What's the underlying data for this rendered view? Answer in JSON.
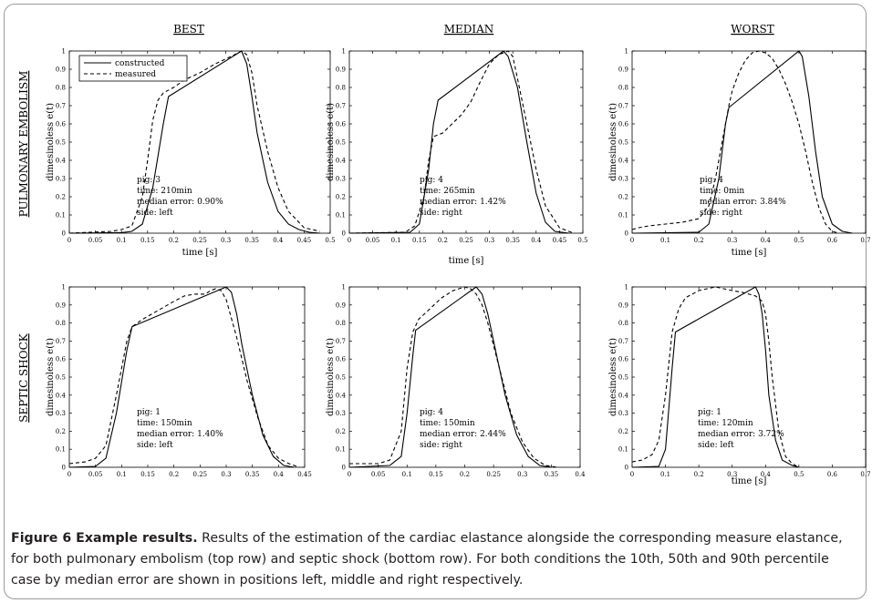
{
  "columns": [
    "BEST",
    "MEDIAN",
    "WORST"
  ],
  "rows": [
    "PULMONARY EMBOLISM",
    "SEPTIC SHOCK"
  ],
  "legend": {
    "constructed": "constructed",
    "measured": "measured"
  },
  "caption": {
    "label": "Figure 6 Example results.",
    "text": "Results of the estimation of the cardiac elastance alongside the corresponding measure elastance, for both pulmonary embolism (top row) and septic shock (bottom row). For both conditions the 10th, 50th and 90th percentile case by median error are shown in positions left, middle and right respectively."
  },
  "chart_data": [
    {
      "type": "line",
      "row": "PULMONARY EMBOLISM",
      "column": "BEST",
      "xlabel": "time [s]",
      "ylabel": "dimesinoless e(t)",
      "xlim": [
        0,
        0.5
      ],
      "ylim": [
        0,
        1
      ],
      "xticks": [
        "0",
        "0.05",
        "0.1",
        "0.15",
        "0.2",
        "0.25",
        "0.3",
        "0.35",
        "0.4",
        "0.45",
        "0.5"
      ],
      "yticks": [
        "0",
        "0.1",
        "0.2",
        "0.3",
        "0.4",
        "0.5",
        "0.6",
        "0.7",
        "0.8",
        "0.9",
        "1"
      ],
      "annotation": [
        "pig: 3",
        "time: 210min",
        "median error: 0.90%",
        "side: left"
      ],
      "series": [
        {
          "name": "constructed",
          "style": "solid",
          "x": [
            0,
            0.1,
            0.12,
            0.14,
            0.16,
            0.18,
            0.19,
            0.33,
            0.34,
            0.35,
            0.36,
            0.38,
            0.4,
            0.42,
            0.44,
            0.46,
            0.48
          ],
          "y": [
            0,
            0.003,
            0.01,
            0.05,
            0.25,
            0.6,
            0.75,
            1,
            0.93,
            0.75,
            0.55,
            0.28,
            0.12,
            0.05,
            0.02,
            0.005,
            0
          ]
        },
        {
          "name": "measured",
          "style": "dashed",
          "x": [
            0,
            0.08,
            0.1,
            0.12,
            0.14,
            0.15,
            0.16,
            0.17,
            0.18,
            0.2,
            0.22,
            0.25,
            0.28,
            0.31,
            0.33,
            0.34,
            0.35,
            0.36,
            0.38,
            0.4,
            0.42,
            0.45,
            0.48
          ],
          "y": [
            0,
            0.01,
            0.02,
            0.04,
            0.2,
            0.4,
            0.62,
            0.73,
            0.77,
            0.8,
            0.84,
            0.88,
            0.93,
            0.97,
            1,
            0.98,
            0.88,
            0.7,
            0.45,
            0.25,
            0.12,
            0.03,
            0.01
          ]
        }
      ]
    },
    {
      "type": "line",
      "row": "PULMONARY EMBOLISM",
      "column": "MEDIAN",
      "xlabel": "time [s]",
      "ylabel": "dimesinoless e(t)",
      "xlim": [
        0,
        0.5
      ],
      "ylim": [
        0,
        1
      ],
      "xticks": [
        "0",
        "0.05",
        "0.1",
        "0.15",
        "0.2",
        "0.25",
        "0.3",
        "0.35",
        "0.4",
        "0.45",
        "0.5"
      ],
      "yticks": [
        "0",
        "0.1",
        "0.2",
        "0.3",
        "0.4",
        "0.5",
        "0.6",
        "0.7",
        "0.8",
        "0.9",
        "1"
      ],
      "annotation": [
        "pig: 4",
        "time: 265min",
        "median error: 1.42%",
        "side: right"
      ],
      "series": [
        {
          "name": "constructed",
          "style": "solid",
          "x": [
            0,
            0.13,
            0.15,
            0.17,
            0.18,
            0.19,
            0.33,
            0.34,
            0.36,
            0.38,
            0.4,
            0.42,
            0.44,
            0.47
          ],
          "y": [
            0,
            0.005,
            0.05,
            0.35,
            0.6,
            0.73,
            1,
            0.97,
            0.8,
            0.5,
            0.22,
            0.06,
            0.01,
            0
          ]
        },
        {
          "name": "measured",
          "style": "dashed",
          "x": [
            0,
            0.12,
            0.14,
            0.16,
            0.17,
            0.18,
            0.2,
            0.22,
            0.24,
            0.26,
            0.28,
            0.3,
            0.32,
            0.34,
            0.35,
            0.36,
            0.38,
            0.4,
            0.42,
            0.45,
            0.48
          ],
          "y": [
            0,
            0.005,
            0.04,
            0.2,
            0.4,
            0.53,
            0.55,
            0.6,
            0.65,
            0.72,
            0.83,
            0.93,
            0.98,
            1,
            0.97,
            0.85,
            0.6,
            0.35,
            0.15,
            0.03,
            0
          ]
        }
      ]
    },
    {
      "type": "line",
      "row": "PULMONARY EMBOLISM",
      "column": "WORST",
      "xlabel": "time [s]",
      "ylabel": "dimesinoless e(t)",
      "xlim": [
        0,
        0.7
      ],
      "ylim": [
        0,
        1
      ],
      "xticks": [
        "0",
        "0.1",
        "0.2",
        "0.3",
        "0.4",
        "0.5",
        "0.6",
        "0.7"
      ],
      "yticks": [
        "0",
        "0.1",
        "0.2",
        "0.3",
        "0.4",
        "0.5",
        "0.6",
        "0.7",
        "0.8",
        "0.9",
        "1"
      ],
      "annotation": [
        "pig: 4",
        "time: 0min",
        "median error: 3.84%",
        "side: right"
      ],
      "series": [
        {
          "name": "constructed",
          "style": "solid",
          "x": [
            0,
            0.2,
            0.23,
            0.26,
            0.28,
            0.29,
            0.5,
            0.51,
            0.53,
            0.55,
            0.57,
            0.6,
            0.63,
            0.66
          ],
          "y": [
            0,
            0.005,
            0.05,
            0.3,
            0.6,
            0.69,
            1,
            0.97,
            0.75,
            0.45,
            0.2,
            0.05,
            0.01,
            0
          ]
        },
        {
          "name": "measured",
          "style": "dashed",
          "x": [
            0,
            0.02,
            0.05,
            0.1,
            0.15,
            0.2,
            0.23,
            0.25,
            0.27,
            0.29,
            0.3,
            0.32,
            0.34,
            0.36,
            0.38,
            0.4,
            0.42,
            0.44,
            0.46,
            0.48,
            0.5,
            0.52,
            0.54,
            0.56,
            0.58,
            0.6,
            0.62
          ],
          "y": [
            0.02,
            0.03,
            0.04,
            0.05,
            0.06,
            0.08,
            0.15,
            0.3,
            0.5,
            0.7,
            0.78,
            0.88,
            0.95,
            0.99,
            1,
            0.99,
            0.96,
            0.9,
            0.82,
            0.72,
            0.6,
            0.45,
            0.28,
            0.14,
            0.05,
            0.01,
            0
          ]
        }
      ]
    },
    {
      "type": "line",
      "row": "SEPTIC SHOCK",
      "column": "BEST",
      "xlabel": "",
      "ylabel": "dimesinoless e(t)",
      "xlim": [
        0,
        0.45
      ],
      "ylim": [
        0,
        1
      ],
      "xticks": [
        "0",
        "0.05",
        "0.1",
        "0.15",
        "0.2",
        "0.25",
        "0.3",
        "0.35",
        "0.4",
        "0.45"
      ],
      "yticks": [
        "0",
        "0.1",
        "0.2",
        "0.3",
        "0.4",
        "0.5",
        "0.6",
        "0.7",
        "0.8",
        "0.9",
        "1"
      ],
      "annotation": [
        "pig: 1",
        "time: 150min",
        "median error: 1.40%",
        "side: left"
      ],
      "series": [
        {
          "name": "constructed",
          "style": "solid",
          "x": [
            0,
            0.05,
            0.07,
            0.09,
            0.11,
            0.12,
            0.3,
            0.31,
            0.32,
            0.33,
            0.35,
            0.37,
            0.39,
            0.41,
            0.43
          ],
          "y": [
            0,
            0.005,
            0.05,
            0.3,
            0.65,
            0.78,
            1,
            0.97,
            0.85,
            0.68,
            0.4,
            0.18,
            0.06,
            0.01,
            0
          ]
        },
        {
          "name": "measured",
          "style": "dashed",
          "x": [
            0,
            0.03,
            0.05,
            0.07,
            0.09,
            0.11,
            0.12,
            0.14,
            0.17,
            0.2,
            0.22,
            0.24,
            0.26,
            0.27,
            0.28,
            0.29,
            0.3,
            0.32,
            0.34,
            0.36,
            0.38,
            0.4,
            0.42,
            0.44
          ],
          "y": [
            0.02,
            0.03,
            0.05,
            0.12,
            0.4,
            0.7,
            0.78,
            0.82,
            0.87,
            0.92,
            0.95,
            0.96,
            0.96,
            0.98,
            0.99,
            0.98,
            0.93,
            0.72,
            0.48,
            0.28,
            0.12,
            0.05,
            0.02,
            0
          ]
        }
      ]
    },
    {
      "type": "line",
      "row": "SEPTIC SHOCK",
      "column": "MEDIAN",
      "xlabel": "",
      "ylabel": "dimesinoless e(t)",
      "xlim": [
        0,
        0.4
      ],
      "ylim": [
        0,
        1
      ],
      "xticks": [
        "0",
        "0.05",
        "0.1",
        "0.15",
        "0.2",
        "0.25",
        "0.3",
        "0.35",
        "0.4"
      ],
      "yticks": [
        "0",
        "0.1",
        "0.2",
        "0.3",
        "0.4",
        "0.5",
        "0.6",
        "0.7",
        "0.8",
        "0.9",
        "1"
      ],
      "annotation": [
        "pig: 4",
        "time: 150min",
        "median error: 2.44%",
        "side: right"
      ],
      "series": [
        {
          "name": "constructed",
          "style": "solid",
          "x": [
            0,
            0.07,
            0.09,
            0.1,
            0.11,
            0.115,
            0.22,
            0.23,
            0.24,
            0.25,
            0.27,
            0.29,
            0.31,
            0.33,
            0.35
          ],
          "y": [
            0,
            0.01,
            0.06,
            0.3,
            0.62,
            0.76,
            1,
            0.96,
            0.85,
            0.7,
            0.4,
            0.18,
            0.06,
            0.01,
            0
          ]
        },
        {
          "name": "measured",
          "style": "dashed",
          "x": [
            0,
            0.05,
            0.07,
            0.09,
            0.1,
            0.11,
            0.12,
            0.14,
            0.16,
            0.18,
            0.2,
            0.21,
            0.22,
            0.23,
            0.24,
            0.26,
            0.28,
            0.3,
            0.32,
            0.34,
            0.36
          ],
          "y": [
            0.02,
            0.02,
            0.04,
            0.2,
            0.55,
            0.75,
            0.82,
            0.88,
            0.94,
            0.98,
            1,
            0.99,
            0.96,
            0.9,
            0.8,
            0.55,
            0.3,
            0.14,
            0.05,
            0.01,
            0
          ]
        }
      ]
    },
    {
      "type": "line",
      "row": "SEPTIC SHOCK",
      "column": "WORST",
      "xlabel": "time [s]",
      "ylabel": "dimesinoless e(t)",
      "xlim": [
        0,
        0.7
      ],
      "ylim": [
        0,
        1
      ],
      "xticks": [
        "0",
        "0.1",
        "0.2",
        "0.3",
        "0.4",
        "0.5",
        "0.6",
        "0.7"
      ],
      "yticks": [
        "0",
        "0.1",
        "0.2",
        "0.3",
        "0.4",
        "0.5",
        "0.6",
        "0.7",
        "0.8",
        "0.9",
        "1"
      ],
      "annotation": [
        "pig: 1",
        "time: 120min",
        "median error: 3.72%",
        "side: left"
      ],
      "series": [
        {
          "name": "constructed",
          "style": "solid",
          "x": [
            0,
            0.08,
            0.1,
            0.12,
            0.13,
            0.37,
            0.38,
            0.39,
            0.4,
            0.41,
            0.43,
            0.45,
            0.48,
            0.5
          ],
          "y": [
            0,
            0.005,
            0.1,
            0.55,
            0.75,
            1,
            0.96,
            0.85,
            0.65,
            0.4,
            0.15,
            0.04,
            0.01,
            0
          ]
        },
        {
          "name": "measured",
          "style": "dashed",
          "x": [
            0,
            0.03,
            0.06,
            0.08,
            0.1,
            0.12,
            0.14,
            0.16,
            0.2,
            0.25,
            0.3,
            0.33,
            0.35,
            0.37,
            0.39,
            0.4,
            0.41,
            0.42,
            0.44,
            0.46,
            0.48,
            0.5
          ],
          "y": [
            0.03,
            0.04,
            0.07,
            0.15,
            0.4,
            0.75,
            0.88,
            0.94,
            0.98,
            1,
            0.98,
            0.97,
            0.96,
            0.95,
            0.92,
            0.85,
            0.7,
            0.5,
            0.2,
            0.06,
            0.02,
            0
          ]
        }
      ]
    }
  ]
}
